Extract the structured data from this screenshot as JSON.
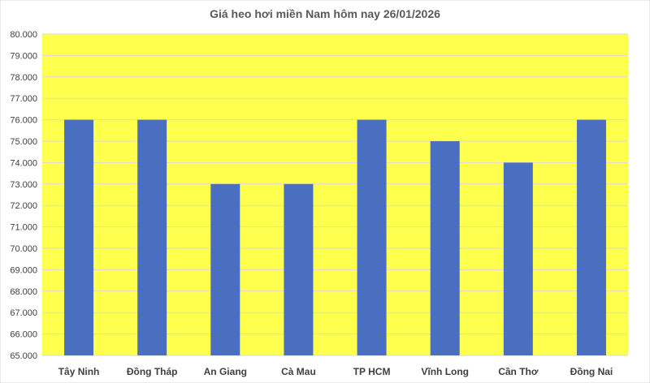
{
  "chart_data": {
    "type": "bar",
    "title": "Giá heo hơi miền Nam hôm nay 26/01/2026",
    "xlabel": "",
    "ylabel": "",
    "categories": [
      "Tây Ninh",
      "Đồng Tháp",
      "An Giang",
      "Cà Mau",
      "TP HCM",
      "Vĩnh Long",
      "Cần Thơ",
      "Đồng Nai"
    ],
    "values": [
      76000,
      76000,
      73000,
      73000,
      76000,
      75000,
      74000,
      76000
    ],
    "ylim": [
      65000,
      80000
    ],
    "ytick_step": 1000,
    "ytick_labels": [
      "65.000",
      "66.000",
      "67.000",
      "68.000",
      "69.000",
      "70.000",
      "71.000",
      "72.000",
      "73.000",
      "74.000",
      "75.000",
      "76.000",
      "77.000",
      "78.000",
      "79.000",
      "80.000"
    ],
    "grid": true,
    "legend": "none",
    "colors": {
      "bar": "#4A6FC0",
      "plot_background": "#FFFF4D",
      "gridline": "#D9D9D9"
    }
  }
}
